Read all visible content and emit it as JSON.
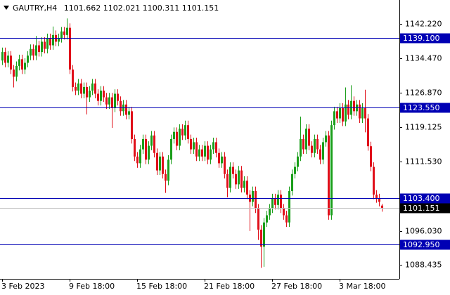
{
  "chart_data": {
    "type": "candlestick",
    "title": "GAUTRY,H4",
    "categories": [
      "3 Feb 2023",
      null,
      null,
      null,
      null,
      null,
      null,
      null,
      null,
      null,
      null,
      null,
      null,
      null,
      null,
      null,
      null,
      null,
      null,
      null,
      null,
      null,
      null,
      null,
      "9 Feb 18:00",
      null,
      null,
      null,
      null,
      null,
      null,
      null,
      null,
      null,
      null,
      null,
      null,
      null,
      null,
      null,
      null,
      null,
      null,
      null,
      null,
      null,
      null,
      null,
      "15 Feb 18:00",
      null,
      null,
      null,
      null,
      null,
      null,
      null,
      null,
      null,
      null,
      null,
      null,
      null,
      null,
      null,
      null,
      null,
      null,
      null,
      null,
      null,
      null,
      null,
      "21 Feb 18:00",
      null,
      null,
      null,
      null,
      null,
      null,
      null,
      null,
      null,
      null,
      null,
      null,
      null,
      null,
      null,
      null,
      null,
      null,
      null,
      null,
      null,
      null,
      null,
      "27 Feb 18:00",
      null,
      null,
      null,
      null,
      null,
      null,
      null,
      null,
      null,
      null,
      null,
      null,
      null,
      null,
      null,
      null,
      null,
      null,
      null,
      null,
      null,
      null,
      null,
      "3 Mar 18:00",
      null,
      null,
      null,
      null,
      null,
      null,
      null,
      null,
      null,
      null,
      null,
      null,
      null,
      null,
      null
    ],
    "open": [
      1134.0,
      1135.9,
      1133.5,
      1135.1,
      1132.0,
      1130.4,
      1132.8,
      1134.3,
      1132.0,
      1133.5,
      1135.1,
      1136.6,
      1135.1,
      1137.4,
      1135.9,
      1138.2,
      1136.6,
      1139.0,
      1137.4,
      1139.7,
      1138.2,
      1139.0,
      1140.5,
      1139.7,
      1141.3,
      1132.0,
      1128.1,
      1127.3,
      1128.9,
      1126.6,
      1128.1,
      1125.8,
      1127.3,
      1128.9,
      1126.6,
      1125.0,
      1127.3,
      1125.8,
      1124.2,
      1125.8,
      1123.5,
      1126.6,
      1125.0,
      1122.7,
      1124.2,
      1121.9,
      1122.7,
      1116.5,
      1112.6,
      1111.1,
      1114.2,
      1116.5,
      1111.9,
      1115.0,
      1117.3,
      1113.4,
      1109.5,
      1112.6,
      1108.7,
      1107.2,
      1111.9,
      1116.5,
      1118.1,
      1115.0,
      1118.8,
      1117.3,
      1119.6,
      1116.5,
      1114.2,
      1115.8,
      1112.6,
      1114.2,
      1112.6,
      1115.0,
      1111.9,
      1114.2,
      1115.8,
      1113.4,
      1111.1,
      1112.6,
      1108.7,
      1105.6,
      1110.3,
      1108.7,
      1106.4,
      1109.5,
      1105.6,
      1107.2,
      1104.1,
      1102.5,
      1104.9,
      1101.0,
      1096.3,
      1092.5,
      1097.9,
      1099.5,
      1101.0,
      1103.3,
      1101.8,
      1104.1,
      1101.0,
      1099.5,
      1097.9,
      1104.9,
      1108.7,
      1110.3,
      1112.6,
      1116.5,
      1114.2,
      1118.8,
      1115.0,
      1113.4,
      1116.5,
      1114.2,
      1111.9,
      1115.8,
      1117.3,
      1099.5,
      1119.6,
      1122.7,
      1121.1,
      1123.5,
      1120.4,
      1124.2,
      1121.9,
      1125.0,
      1122.7,
      1124.2,
      1121.1,
      1123.5,
      1121.1,
      1114.9,
      1110.3,
      1104.1,
      1103.3,
      1101.662
    ],
    "high": [
      1136.9,
      1136.9,
      1136.1,
      1136.1,
      1133.0,
      1133.8,
      1135.3,
      1135.3,
      1134.5,
      1136.1,
      1137.6,
      1137.6,
      1139.5,
      1138.4,
      1139.2,
      1139.2,
      1140.0,
      1140.0,
      1141.6,
      1140.7,
      1140.0,
      1141.5,
      1141.5,
      1143.4,
      1142.3,
      1133.0,
      1129.1,
      1129.9,
      1129.9,
      1129.1,
      1129.1,
      1128.3,
      1129.9,
      1129.9,
      1127.6,
      1128.3,
      1128.3,
      1126.8,
      1126.8,
      1126.8,
      1127.6,
      1127.6,
      1126.0,
      1125.2,
      1125.2,
      1123.7,
      1123.7,
      1117.5,
      1113.6,
      1115.2,
      1117.5,
      1117.5,
      1116.0,
      1118.3,
      1118.3,
      1114.4,
      1113.6,
      1113.6,
      1109.7,
      1112.9,
      1117.5,
      1119.1,
      1119.1,
      1119.8,
      1119.8,
      1120.6,
      1120.6,
      1117.5,
      1116.8,
      1116.8,
      1115.2,
      1115.2,
      1116.0,
      1116.0,
      1115.2,
      1116.8,
      1116.8,
      1114.4,
      1113.6,
      1113.6,
      1109.7,
      1111.3,
      1111.3,
      1109.7,
      1110.5,
      1110.5,
      1108.2,
      1108.2,
      1105.1,
      1105.9,
      1105.9,
      1102.0,
      1097.3,
      1098.9,
      1100.5,
      1102.0,
      1104.3,
      1104.3,
      1105.1,
      1105.1,
      1102.0,
      1100.5,
      1105.9,
      1109.7,
      1111.3,
      1113.6,
      1121.5,
      1117.5,
      1119.8,
      1119.8,
      1116.0,
      1117.5,
      1117.5,
      1115.2,
      1116.8,
      1118.3,
      1118.3,
      1120.6,
      1123.7,
      1123.7,
      1124.5,
      1124.5,
      1128.0,
      1125.2,
      1128.5,
      1126.0,
      1125.2,
      1125.2,
      1124.5,
      1127.5,
      1122.1,
      1115.9,
      1111.3,
      1105.1,
      1104.3,
      1102.021
    ],
    "low": [
      1133.0,
      1132.5,
      1132.5,
      1131.0,
      1128.0,
      1129.4,
      1131.8,
      1131.0,
      1131.0,
      1132.5,
      1134.1,
      1134.1,
      1134.1,
      1134.9,
      1134.9,
      1135.6,
      1135.6,
      1136.4,
      1136.4,
      1137.2,
      1137.2,
      1138.0,
      1138.7,
      1138.7,
      1131.0,
      1127.1,
      1126.3,
      1126.3,
      1125.6,
      1125.6,
      1122.0,
      1124.8,
      1126.3,
      1125.6,
      1124.0,
      1124.0,
      1124.8,
      1123.2,
      1123.2,
      1119.0,
      1122.5,
      1124.0,
      1121.7,
      1121.7,
      1120.9,
      1120.9,
      1115.5,
      1111.6,
      1110.1,
      1110.1,
      1113.2,
      1110.9,
      1110.9,
      1114.0,
      1112.4,
      1108.5,
      1108.5,
      1107.7,
      1104.5,
      1106.2,
      1110.9,
      1115.5,
      1114.0,
      1114.0,
      1116.3,
      1116.3,
      1115.5,
      1113.2,
      1113.2,
      1111.6,
      1111.6,
      1111.6,
      1111.6,
      1110.9,
      1110.9,
      1113.2,
      1112.4,
      1110.1,
      1110.1,
      1107.7,
      1103.5,
      1104.6,
      1107.7,
      1105.4,
      1105.4,
      1104.6,
      1104.6,
      1103.1,
      1096.0,
      1101.5,
      1100.0,
      1094.0,
      1087.8,
      1088.0,
      1096.9,
      1098.5,
      1100.0,
      1100.8,
      1100.8,
      1100.0,
      1098.5,
      1096.9,
      1096.9,
      1103.9,
      1107.7,
      1109.3,
      1111.6,
      1113.2,
      1113.2,
      1114.0,
      1112.4,
      1112.4,
      1113.2,
      1110.9,
      1110.9,
      1114.8,
      1098.5,
      1098.5,
      1118.6,
      1120.1,
      1120.1,
      1119.4,
      1119.4,
      1120.9,
      1120.9,
      1121.7,
      1121.7,
      1120.1,
      1120.1,
      1118.0,
      1113.9,
      1109.3,
      1103.1,
      1102.3,
      1101.5,
      1100.311
    ],
    "close": [
      1135.9,
      1133.5,
      1135.1,
      1132.0,
      1130.4,
      1132.8,
      1134.3,
      1132.0,
      1133.5,
      1135.1,
      1136.6,
      1135.1,
      1137.4,
      1135.9,
      1138.2,
      1136.6,
      1139.0,
      1137.4,
      1139.7,
      1138.2,
      1139.0,
      1140.5,
      1139.7,
      1141.3,
      1132.0,
      1128.1,
      1127.3,
      1128.9,
      1126.6,
      1128.1,
      1125.8,
      1127.3,
      1128.9,
      1126.6,
      1125.0,
      1127.3,
      1125.8,
      1124.2,
      1125.8,
      1123.5,
      1126.6,
      1125.0,
      1122.7,
      1124.2,
      1121.9,
      1122.7,
      1116.5,
      1112.6,
      1111.1,
      1114.2,
      1116.5,
      1111.9,
      1115.0,
      1117.3,
      1113.4,
      1109.5,
      1112.6,
      1108.7,
      1107.2,
      1111.9,
      1116.5,
      1118.1,
      1115.0,
      1118.8,
      1117.3,
      1119.6,
      1116.5,
      1114.2,
      1115.8,
      1112.6,
      1114.2,
      1112.6,
      1115.0,
      1111.9,
      1114.2,
      1115.8,
      1113.4,
      1111.1,
      1112.6,
      1108.7,
      1105.6,
      1110.3,
      1108.7,
      1106.4,
      1109.5,
      1105.6,
      1107.2,
      1104.1,
      1102.5,
      1104.9,
      1101.0,
      1096.3,
      1092.5,
      1097.9,
      1099.5,
      1101.0,
      1103.3,
      1101.8,
      1104.1,
      1101.0,
      1099.5,
      1097.9,
      1104.9,
      1108.7,
      1110.3,
      1112.6,
      1116.5,
      1114.2,
      1118.8,
      1115.0,
      1113.4,
      1116.5,
      1114.2,
      1111.9,
      1115.8,
      1117.3,
      1099.5,
      1119.6,
      1122.7,
      1121.1,
      1123.5,
      1120.4,
      1124.2,
      1121.9,
      1125.0,
      1122.7,
      1124.2,
      1121.1,
      1123.5,
      1121.1,
      1114.9,
      1110.3,
      1104.1,
      1103.3,
      1102.5,
      1101.151
    ],
    "up_color": "#1a9e1a",
    "down_color": "#e0101a",
    "ylim": [
      1085.64,
      1146.25
    ],
    "yticks": [
      {
        "value": 1142.22,
        "label": "1142.220"
      },
      {
        "value": 1134.47,
        "label": "1134.470"
      },
      {
        "value": 1126.87,
        "label": "1126.870"
      },
      1119.125,
      {
        "value": 1111.53,
        "label": "1111.530"
      },
      {
        "value": 1096.03,
        "label": "1096.030"
      },
      1088.435
    ],
    "levels": [
      {
        "value": 1139.1,
        "label": "1139.100"
      },
      {
        "value": 1123.55,
        "label": "1123.550"
      },
      {
        "value": 1103.4,
        "label": "1103.400"
      },
      {
        "value": 1092.95,
        "label": "1092.950"
      }
    ],
    "level_color": "#0000b4",
    "grid": false
  }
}
